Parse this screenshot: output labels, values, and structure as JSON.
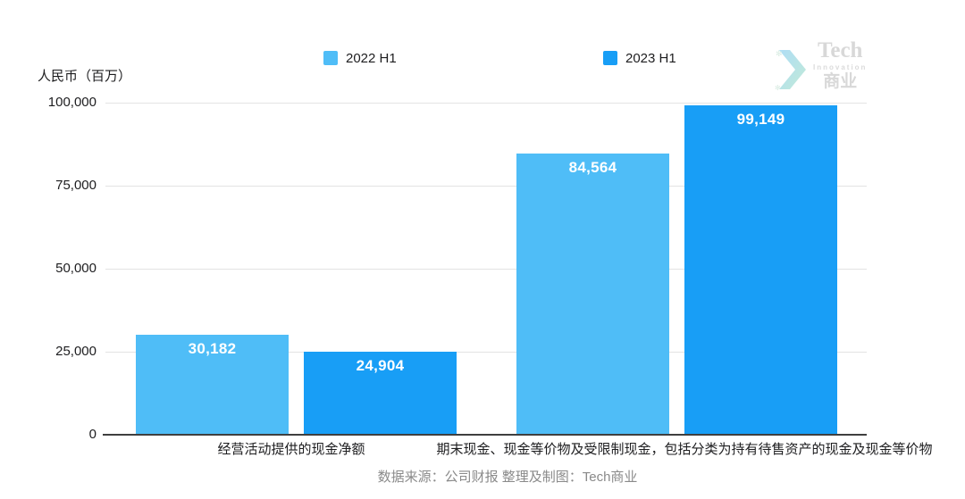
{
  "unit_label": "人民币（百万）",
  "legend": [
    {
      "label": "2022 H1",
      "color": "#4FBDF7"
    },
    {
      "label": "2023 H1",
      "color": "#189EF6"
    }
  ],
  "logo": {
    "name": "Tech",
    "subtitle": "Innovation",
    "cn": "商业",
    "chevron_icon": "chevron-right-icon",
    "color": "#d6d6d6",
    "chevron_colors": [
      "#aadcf5",
      "#bfe9d6"
    ]
  },
  "footer": "数据来源：公司财报 整理及制图：Tech商业",
  "chart_data": {
    "type": "bar",
    "categories": [
      "经营活动提供的现金净额",
      "期末现金、现金等价物及受限制现金，包括分类为持有待售资产的现金及现金等价物"
    ],
    "series": [
      {
        "name": "2022 H1",
        "color": "#4FBDF7",
        "values": [
          30182,
          84564
        ],
        "labels": [
          "30,182",
          "84,564"
        ]
      },
      {
        "name": "2023 H1",
        "color": "#189EF6",
        "values": [
          24904,
          99149
        ],
        "labels": [
          "24,904",
          "99,149"
        ]
      }
    ],
    "title": "",
    "xlabel": "",
    "ylabel": "人民币（百万）",
    "ylim": [
      0,
      100000
    ],
    "yticks": [
      0,
      25000,
      50000,
      75000,
      100000
    ],
    "ytick_labels": [
      "0",
      "25,000",
      "50,000",
      "75,000",
      "100,000"
    ],
    "grid": true,
    "legend_position": "top",
    "value_label_color": "#ffffff"
  }
}
